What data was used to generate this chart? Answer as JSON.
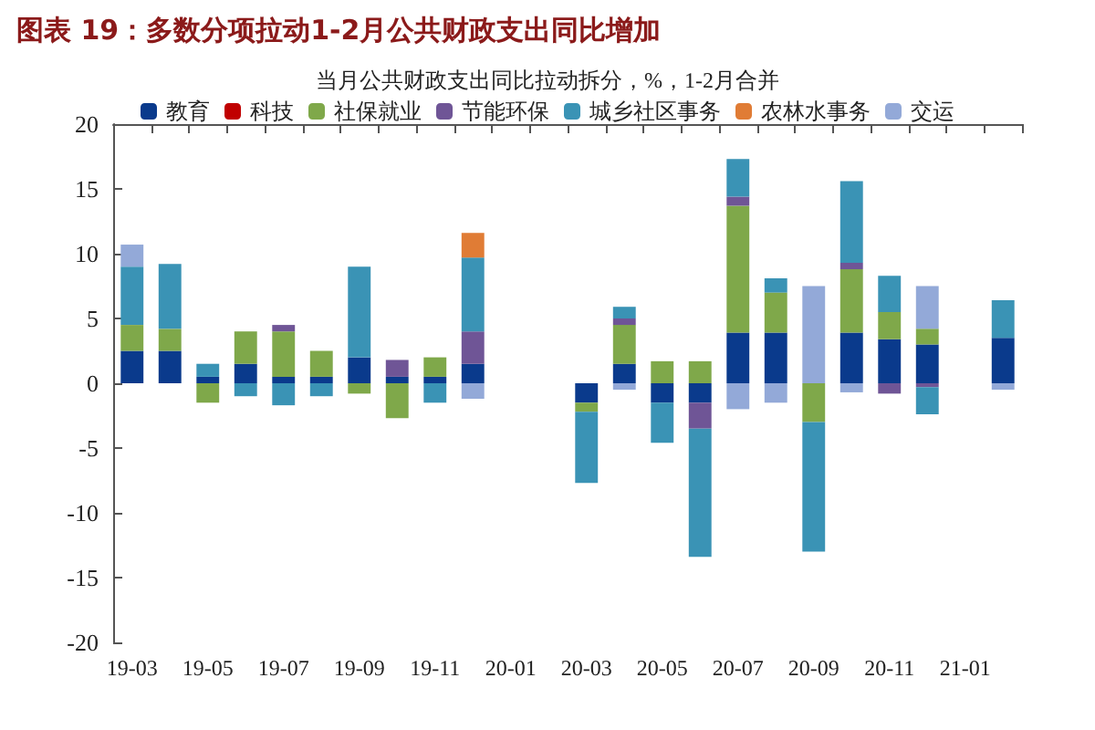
{
  "chart_data": {
    "type": "bar",
    "title": "图表 19：多数分项拉动1-2月公共财政支出同比增加",
    "subtitle": "当月公共财政支出同比拉动拆分，%，1-2月合并",
    "categories": [
      "19-03",
      null,
      "19-05",
      null,
      "19-07",
      null,
      "19-09",
      null,
      "19-11",
      null,
      "20-01",
      null,
      "20-03",
      null,
      "20-05",
      null,
      "20-07",
      null,
      "20-09",
      null,
      "20-11",
      null,
      "21-01",
      null
    ],
    "stacked": true,
    "ylim": [
      -20,
      20
    ],
    "yticks": [
      -20,
      -15,
      -10,
      -5,
      0,
      5,
      10,
      15,
      20
    ],
    "grid": false,
    "legend": "top",
    "series": [
      {
        "name": "教育",
        "color": "#0a3a8c",
        "values": [
          2.5,
          2.5,
          0.5,
          1.5,
          0.5,
          0.5,
          2,
          0.5,
          0.5,
          1.5,
          null,
          null,
          -1.5,
          1.5,
          -1.5,
          -1.5,
          3.9,
          3.9,
          null,
          3.9,
          3.4,
          3,
          null,
          3.5
        ]
      },
      {
        "name": "科技",
        "color": "#c00000",
        "values": [
          null,
          null,
          null,
          null,
          null,
          null,
          null,
          null,
          null,
          null,
          null,
          null,
          null,
          null,
          null,
          null,
          null,
          null,
          null,
          null,
          null,
          null,
          null,
          null
        ]
      },
      {
        "name": "社保就业",
        "color": "#7fa84a",
        "values": [
          2,
          1.7,
          -1.5,
          2.5,
          3.5,
          2,
          -0.8,
          -2.7,
          1.5,
          null,
          null,
          null,
          -0.7,
          3,
          1.7,
          1.7,
          9.8,
          3.1,
          -3,
          4.9,
          2.1,
          1.2,
          null,
          null
        ]
      },
      {
        "name": "节能环保",
        "color": "#6f5596",
        "values": [
          null,
          null,
          null,
          null,
          0.5,
          null,
          null,
          1.3,
          null,
          2.5,
          null,
          null,
          null,
          0.5,
          null,
          -2,
          0.7,
          null,
          null,
          0.5,
          -0.8,
          -0.3,
          null,
          null
        ]
      },
      {
        "name": "城乡社区事务",
        "color": "#3a93b5",
        "values": [
          4.5,
          5,
          1,
          -1,
          -1.7,
          -1,
          7,
          null,
          -1.5,
          5.7,
          null,
          null,
          -5.5,
          0.9,
          -3.1,
          -9.9,
          2.9,
          1.1,
          -10,
          6.3,
          2.8,
          -2.1,
          null,
          2.9
        ]
      },
      {
        "name": "农林水事务",
        "color": "#e07c35",
        "values": [
          null,
          null,
          null,
          null,
          null,
          null,
          null,
          null,
          null,
          1.9,
          null,
          null,
          null,
          null,
          null,
          null,
          null,
          null,
          null,
          null,
          null,
          null,
          null,
          null
        ]
      },
      {
        "name": "交运",
        "color": "#93a9d8",
        "values": [
          1.7,
          null,
          null,
          null,
          null,
          null,
          null,
          null,
          null,
          -1.2,
          null,
          null,
          null,
          -0.5,
          null,
          null,
          -2,
          -1.5,
          7.5,
          -0.7,
          null,
          3.3,
          null,
          -0.5
        ]
      }
    ]
  }
}
